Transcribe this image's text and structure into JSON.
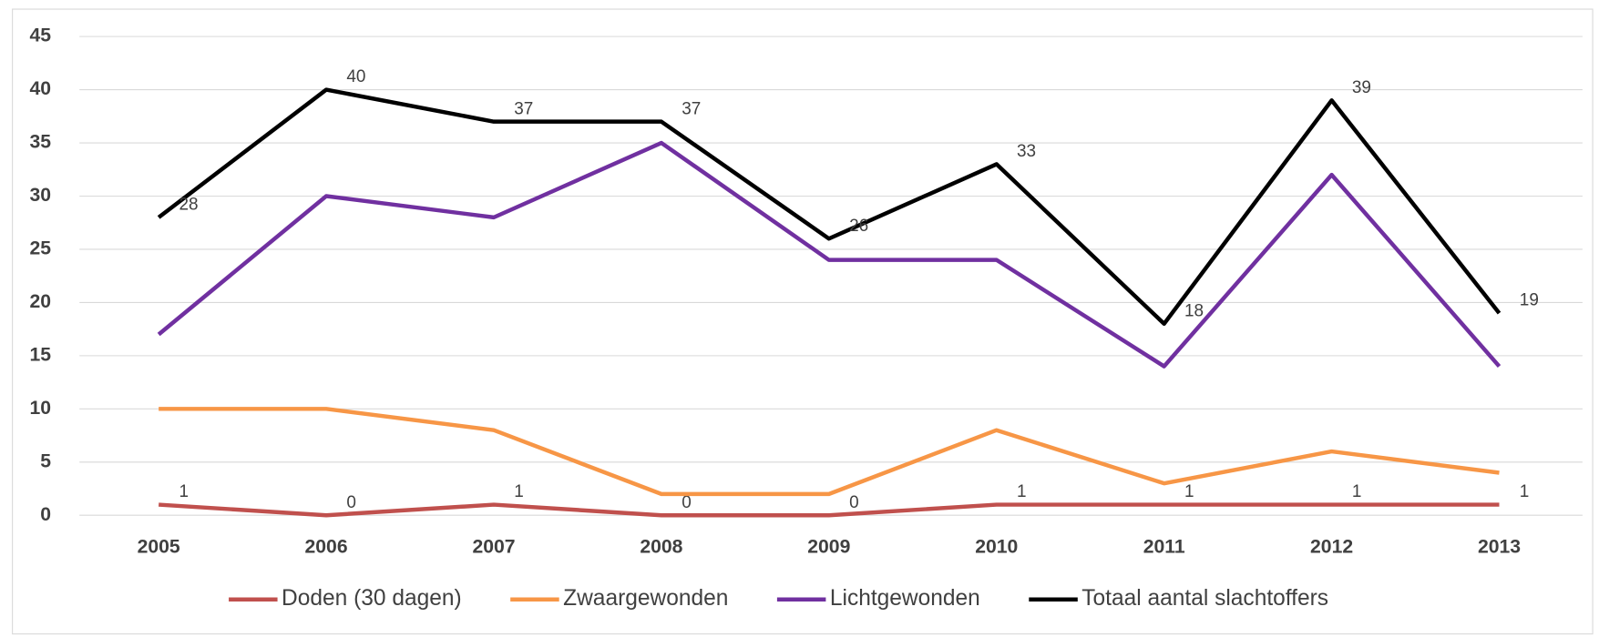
{
  "chart_data": {
    "type": "line",
    "categories": [
      "2005",
      "2006",
      "2007",
      "2008",
      "2009",
      "2010",
      "2011",
      "2012",
      "2013"
    ],
    "series": [
      {
        "name": "Doden (30 dagen)",
        "color": "#c0504d",
        "values": [
          1,
          0,
          1,
          0,
          0,
          1,
          1,
          1,
          1
        ],
        "data_labels": true
      },
      {
        "name": "Zwaargewonden",
        "color": "#f79646",
        "values": [
          10,
          10,
          8,
          2,
          2,
          8,
          3,
          6,
          4
        ],
        "data_labels": false
      },
      {
        "name": "Lichtgewonden",
        "color": "#7030a0",
        "values": [
          17,
          30,
          28,
          35,
          24,
          24,
          14,
          32,
          14
        ],
        "data_labels": false
      },
      {
        "name": "Totaal aantal slachtoffers",
        "color": "#000000",
        "values": [
          28,
          40,
          37,
          37,
          26,
          33,
          18,
          39,
          19
        ],
        "data_labels": true
      }
    ],
    "ylim": [
      0,
      45
    ],
    "yticks": [
      0,
      5,
      10,
      15,
      20,
      25,
      30,
      35,
      40,
      45
    ],
    "grid": true,
    "legend": "bottom"
  }
}
